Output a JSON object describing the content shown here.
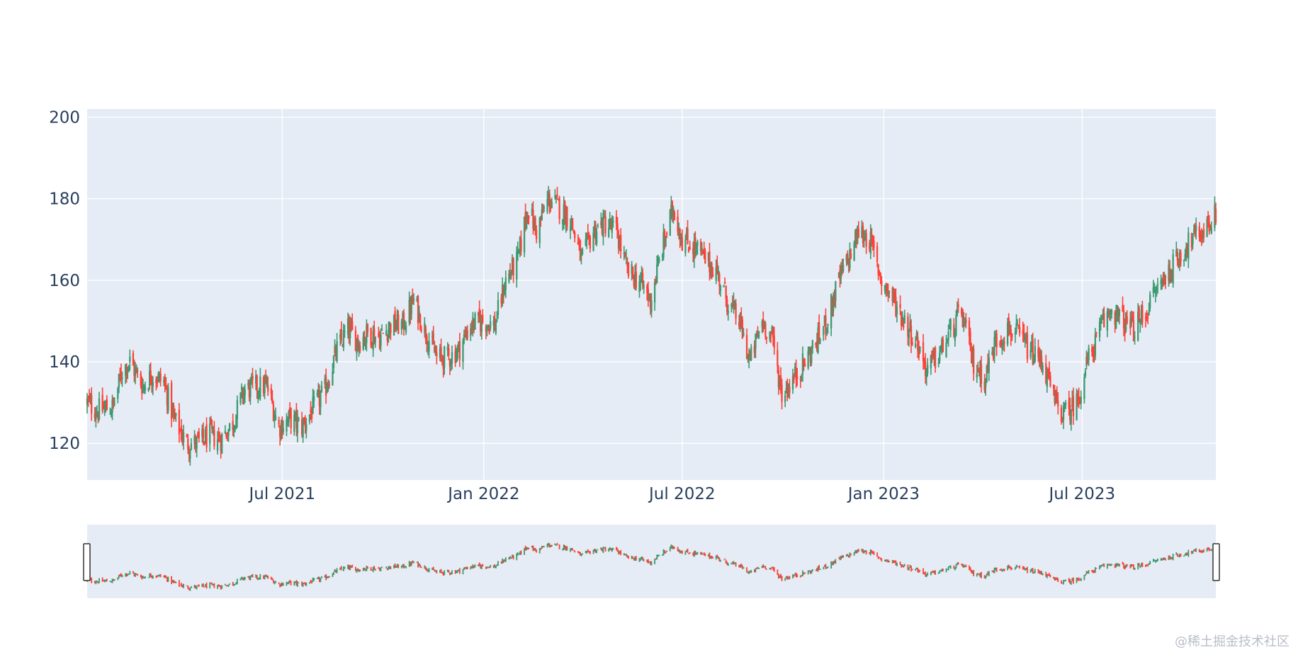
{
  "chart_data": {
    "type": "candlestick",
    "title": "",
    "xlabel": "",
    "ylabel": "",
    "x_range": [
      "2021-01-04",
      "2023-10-31"
    ],
    "ylim": [
      111,
      202
    ],
    "y_ticks": [
      120,
      140,
      160,
      180,
      200
    ],
    "x_ticks": [
      {
        "date": "2021-07-01",
        "label": "Jul 2021"
      },
      {
        "date": "2022-01-01",
        "label": "Jan 2022"
      },
      {
        "date": "2022-07-01",
        "label": "Jul 2022"
      },
      {
        "date": "2023-01-01",
        "label": "Jan 2023"
      },
      {
        "date": "2023-07-01",
        "label": "Jul 2023"
      }
    ],
    "grid": true,
    "rangeslider": true,
    "increasing_color": "#3d9970",
    "decreasing_color": "#ff4136",
    "plot_bg_color": "#e5ecf6",
    "close_waypoints": [
      [
        "2021-01-04",
        130
      ],
      [
        "2021-01-13",
        128
      ],
      [
        "2021-01-28",
        129
      ],
      [
        "2021-02-05",
        138
      ],
      [
        "2021-02-12",
        140
      ],
      [
        "2021-02-24",
        134
      ],
      [
        "2021-03-04",
        137
      ],
      [
        "2021-03-15",
        135
      ],
      [
        "2021-03-24",
        126
      ],
      [
        "2021-04-05",
        120
      ],
      [
        "2021-04-15",
        120
      ],
      [
        "2021-04-26",
        122
      ],
      [
        "2021-05-06",
        121
      ],
      [
        "2021-05-17",
        125
      ],
      [
        "2021-05-27",
        133
      ],
      [
        "2021-06-08",
        134
      ],
      [
        "2021-06-17",
        134
      ],
      [
        "2021-06-28",
        124
      ],
      [
        "2021-07-08",
        126
      ],
      [
        "2021-07-19",
        124
      ],
      [
        "2021-07-28",
        128
      ],
      [
        "2021-08-09",
        133
      ],
      [
        "2021-08-20",
        143
      ],
      [
        "2021-08-30",
        148
      ],
      [
        "2021-09-08",
        145
      ],
      [
        "2021-09-17",
        147
      ],
      [
        "2021-09-28",
        146
      ],
      [
        "2021-10-08",
        149
      ],
      [
        "2021-10-19",
        149
      ],
      [
        "2021-10-29",
        155
      ],
      [
        "2021-11-08",
        148
      ],
      [
        "2021-11-19",
        141
      ],
      [
        "2021-11-30",
        141
      ],
      [
        "2021-12-09",
        143
      ],
      [
        "2021-12-20",
        149
      ],
      [
        "2021-12-31",
        150
      ],
      [
        "2022-01-11",
        149
      ],
      [
        "2022-01-21",
        160
      ],
      [
        "2022-02-01",
        165
      ],
      [
        "2022-02-10",
        178
      ],
      [
        "2022-02-18",
        172
      ],
      [
        "2022-03-01",
        180
      ],
      [
        "2022-03-10",
        178
      ],
      [
        "2022-03-21",
        175
      ],
      [
        "2022-03-31",
        165
      ],
      [
        "2022-04-11",
        172
      ],
      [
        "2022-04-21",
        174
      ],
      [
        "2022-05-02",
        172
      ],
      [
        "2022-05-12",
        162
      ],
      [
        "2022-05-23",
        160
      ],
      [
        "2022-06-02",
        155
      ],
      [
        "2022-06-13",
        168
      ],
      [
        "2022-06-23",
        178
      ],
      [
        "2022-07-01",
        170
      ],
      [
        "2022-07-13",
        168
      ],
      [
        "2022-07-22",
        165
      ],
      [
        "2022-08-02",
        162
      ],
      [
        "2022-08-11",
        155
      ],
      [
        "2022-08-22",
        150
      ],
      [
        "2022-09-01",
        140
      ],
      [
        "2022-09-12",
        150
      ],
      [
        "2022-09-21",
        146
      ],
      [
        "2022-09-30",
        132
      ],
      [
        "2022-10-11",
        136
      ],
      [
        "2022-10-21",
        140
      ],
      [
        "2022-11-01",
        145
      ],
      [
        "2022-11-10",
        150
      ],
      [
        "2022-11-21",
        160
      ],
      [
        "2022-12-01",
        166
      ],
      [
        "2022-12-09",
        172
      ],
      [
        "2022-12-19",
        170
      ],
      [
        "2022-12-30",
        160
      ],
      [
        "2023-01-10",
        155
      ],
      [
        "2023-01-20",
        150
      ],
      [
        "2023-01-31",
        145
      ],
      [
        "2023-02-09",
        138
      ],
      [
        "2023-02-21",
        142
      ],
      [
        "2023-03-02",
        147
      ],
      [
        "2023-03-13",
        152
      ],
      [
        "2023-03-23",
        140
      ],
      [
        "2023-04-03",
        136
      ],
      [
        "2023-04-13",
        145
      ],
      [
        "2023-04-25",
        148
      ],
      [
        "2023-05-05",
        146
      ],
      [
        "2023-05-16",
        142
      ],
      [
        "2023-05-26",
        140
      ],
      [
        "2023-06-06",
        130
      ],
      [
        "2023-06-15",
        127
      ],
      [
        "2023-06-26",
        130
      ],
      [
        "2023-07-06",
        140
      ],
      [
        "2023-07-18",
        148
      ],
      [
        "2023-07-27",
        153
      ],
      [
        "2023-08-07",
        150
      ],
      [
        "2023-08-17",
        148
      ],
      [
        "2023-08-28",
        152
      ],
      [
        "2023-09-07",
        158
      ],
      [
        "2023-09-18",
        162
      ],
      [
        "2023-09-28",
        166
      ],
      [
        "2023-10-09",
        170
      ],
      [
        "2023-10-19",
        172
      ],
      [
        "2023-10-31",
        176
      ]
    ]
  }
}
